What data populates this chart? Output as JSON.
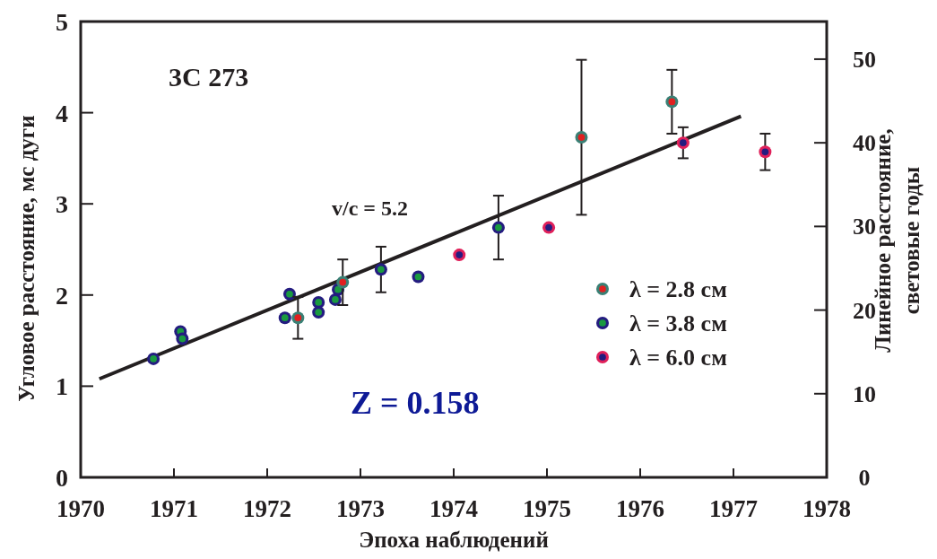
{
  "chart_data": {
    "type": "scatter",
    "xlabel": "Эпоха наблюдений",
    "ylabel": "Угловое расстояние, мс дуги",
    "y2label": "Линейное расстояние,\nсветовые годы",
    "xlim": [
      1970,
      1978
    ],
    "xticks": [
      1970,
      1971,
      1972,
      1973,
      1974,
      1975,
      1976,
      1977,
      1978
    ],
    "ylim": [
      0,
      5
    ],
    "yticks": [
      0,
      1,
      2,
      3,
      4,
      5
    ],
    "y2lim": [
      0,
      54.5
    ],
    "y2ticks": [
      0,
      10,
      20,
      30,
      40,
      50
    ],
    "marker": "circle",
    "legend": "right",
    "grid": false,
    "annotations": [
      "3C 273",
      "v/c = 5.2",
      "Z = 0.158"
    ],
    "series": [
      {
        "name": "λ = 2.8 см",
        "color": "#3a8075",
        "x": [
          1972.33,
          1972.81,
          1975.37,
          1976.34
        ],
        "values": [
          1.75,
          2.14,
          3.73,
          4.12
        ],
        "errors": [
          0.23,
          0.25,
          0.85,
          0.35
        ]
      },
      {
        "name": "λ = 3.8 см",
        "color": "#241c80",
        "x": [
          1970.78,
          1971.07,
          1971.09,
          1972.19,
          1972.24,
          1972.55,
          1972.55,
          1972.73,
          1972.76,
          1973.22,
          1973.62,
          1974.48
        ],
        "values": [
          1.3,
          1.6,
          1.52,
          1.75,
          2.01,
          1.92,
          1.81,
          1.95,
          2.06,
          2.28,
          2.2,
          2.74
        ],
        "errors": [
          null,
          null,
          null,
          null,
          null,
          null,
          null,
          null,
          null,
          0.25,
          null,
          0.35
        ]
      },
      {
        "name": "λ = 6.0 см",
        "color": "#e0205a",
        "x": [
          1974.06,
          1975.02,
          1976.46,
          1977.34
        ],
        "values": [
          2.44,
          2.74,
          3.67,
          3.57
        ],
        "errors": [
          null,
          null,
          0.17,
          0.2
        ]
      },
      {
        "type": "line",
        "marker": "none",
        "color": "#231f20",
        "x": [
          1970.2,
          1977.08
        ],
        "values": [
          1.08,
          3.96
        ]
      }
    ]
  }
}
